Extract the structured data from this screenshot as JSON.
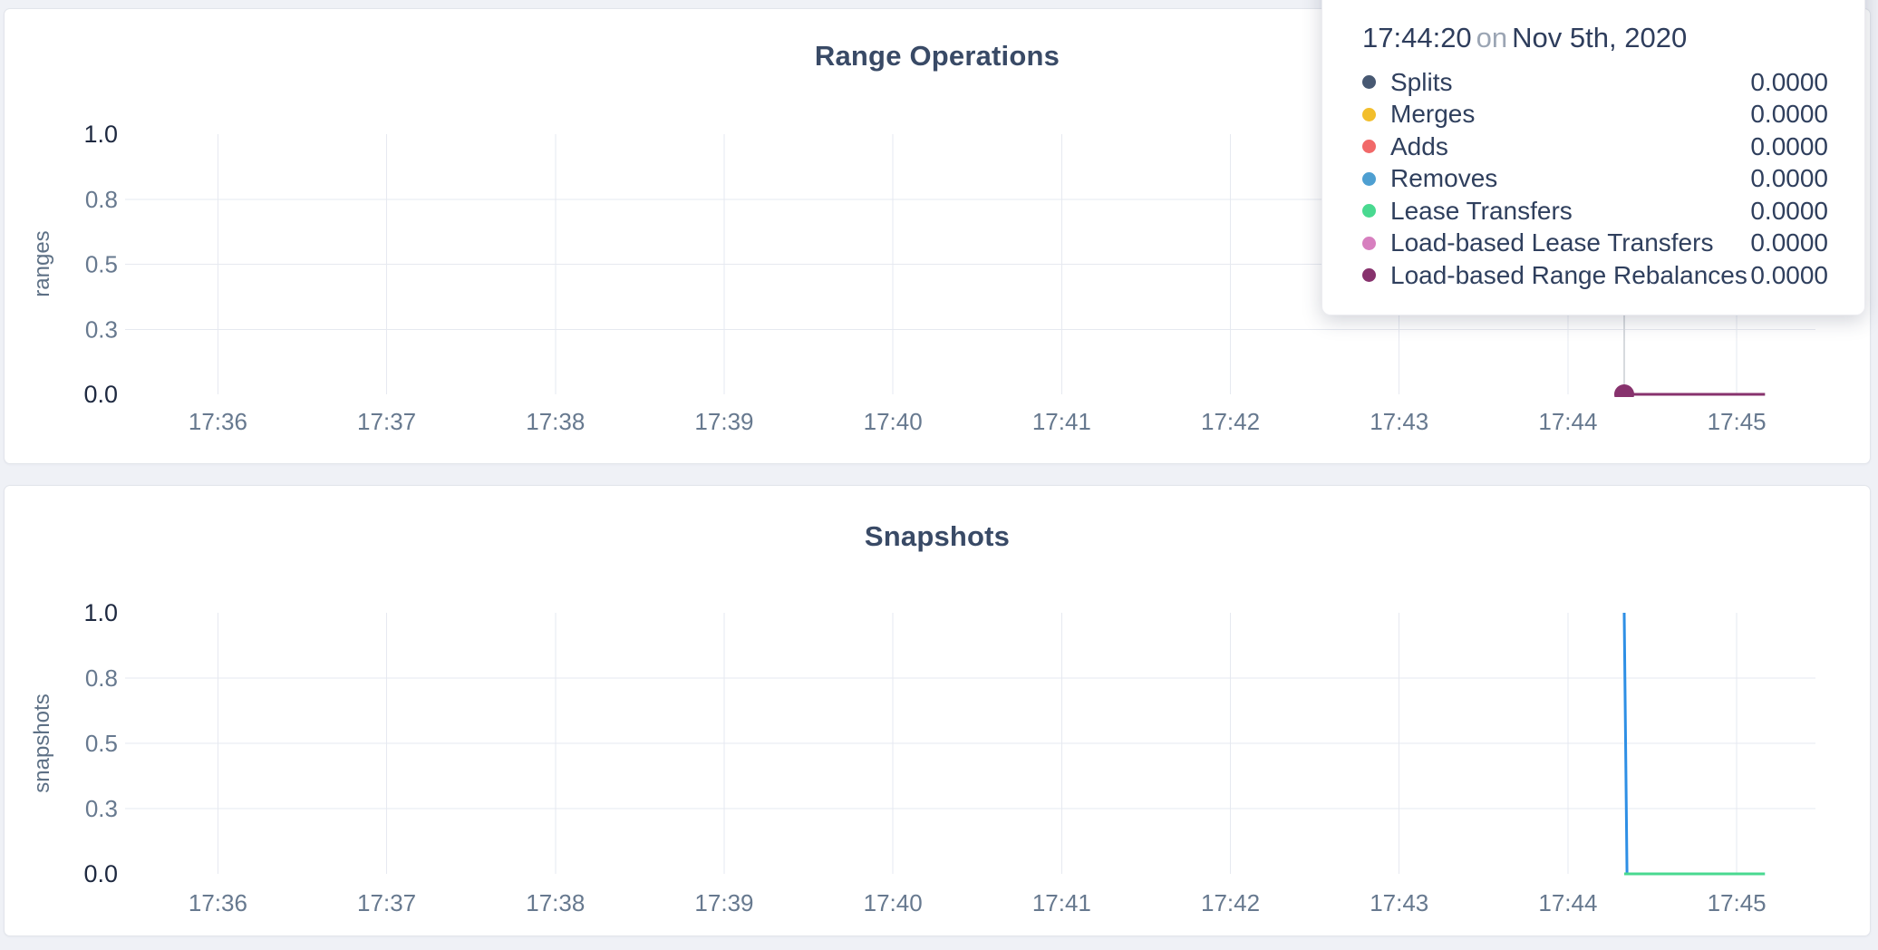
{
  "tooltip": {
    "time": "17:44:20",
    "conjunction": "on",
    "date": "Nov 5th, 2020",
    "rows": [
      {
        "label": "Splits",
        "value": "0.0000",
        "color": "#475872"
      },
      {
        "label": "Merges",
        "value": "0.0000",
        "color": "#F2BE2C"
      },
      {
        "label": "Adds",
        "value": "0.0000",
        "color": "#F16969"
      },
      {
        "label": "Removes",
        "value": "0.0000",
        "color": "#4E9FD1"
      },
      {
        "label": "Lease Transfers",
        "value": "0.0000",
        "color": "#49D990"
      },
      {
        "label": "Load-based Lease Transfers",
        "value": "0.0000",
        "color": "#D77FBF"
      },
      {
        "label": "Load-based Range Rebalances",
        "value": "0.0000",
        "color": "#87326D"
      }
    ]
  },
  "chart_data": [
    {
      "type": "line",
      "title": "Range Operations",
      "ylabel": "ranges",
      "ylim": [
        0,
        1
      ],
      "grid": true,
      "legend_position": "tooltip-overlay",
      "x_domain": [
        "17:35:27",
        "17:45:28"
      ],
      "x_ticks": [
        "17:36",
        "17:37",
        "17:38",
        "17:39",
        "17:40",
        "17:41",
        "17:42",
        "17:43",
        "17:44",
        "17:45"
      ],
      "y_ticks": [
        {
          "label": "0.0",
          "value": 0,
          "emphasis": true
        },
        {
          "label": "0.3",
          "value": 0.25,
          "emphasis": false
        },
        {
          "label": "0.5",
          "value": 0.5,
          "emphasis": false
        },
        {
          "label": "0.8",
          "value": 0.75,
          "emphasis": false
        },
        {
          "label": "1.0",
          "value": 1,
          "emphasis": true
        }
      ],
      "series": [
        {
          "name": "Splits",
          "color": "#475872",
          "points": [
            [
              "17:44:20",
              0
            ],
            [
              "17:45:10",
              0
            ]
          ]
        },
        {
          "name": "Merges",
          "color": "#F2BE2C",
          "points": [
            [
              "17:44:20",
              0
            ],
            [
              "17:45:10",
              0
            ]
          ]
        },
        {
          "name": "Adds",
          "color": "#F16969",
          "points": [
            [
              "17:44:20",
              0
            ],
            [
              "17:45:10",
              0
            ]
          ]
        },
        {
          "name": "Removes",
          "color": "#4E9FD1",
          "points": [
            [
              "17:44:20",
              0
            ],
            [
              "17:45:10",
              0
            ]
          ]
        },
        {
          "name": "Lease Transfers",
          "color": "#49D990",
          "points": [
            [
              "17:44:20",
              0
            ],
            [
              "17:45:10",
              0
            ]
          ]
        },
        {
          "name": "Load-based Lease Transfers",
          "color": "#D77FBF",
          "points": [
            [
              "17:44:20",
              0
            ],
            [
              "17:45:10",
              0
            ]
          ]
        },
        {
          "name": "Load-based Range Rebalances",
          "color": "#87326D",
          "points": [
            [
              "17:44:20",
              0
            ],
            [
              "17:45:10",
              0
            ]
          ]
        }
      ],
      "hover": {
        "time": "17:44:20",
        "crosshair": true,
        "dot_series": "Load-based Range Rebalances",
        "dot_value": 0
      }
    },
    {
      "type": "line",
      "title": "Snapshots",
      "ylabel": "snapshots",
      "ylim": [
        0,
        1
      ],
      "grid": true,
      "x_domain": [
        "17:35:27",
        "17:45:28"
      ],
      "x_ticks": [
        "17:36",
        "17:37",
        "17:38",
        "17:39",
        "17:40",
        "17:41",
        "17:42",
        "17:43",
        "17:44",
        "17:45"
      ],
      "y_ticks": [
        {
          "label": "0.0",
          "value": 0,
          "emphasis": true
        },
        {
          "label": "0.3",
          "value": 0.25,
          "emphasis": false
        },
        {
          "label": "0.5",
          "value": 0.5,
          "emphasis": false
        },
        {
          "label": "0.8",
          "value": 0.75,
          "emphasis": false
        },
        {
          "label": "1.0",
          "value": 1,
          "emphasis": true
        }
      ],
      "series": [
        {
          "name": "series-blue",
          "color": "#2E8FE5",
          "points": [
            [
              "17:44:20",
              1
            ],
            [
              "17:44:21",
              0
            ],
            [
              "17:45:10",
              0
            ]
          ]
        },
        {
          "name": "series-green",
          "color": "#49D990",
          "points": [
            [
              "17:44:20",
              0
            ],
            [
              "17:45:10",
              0
            ]
          ]
        }
      ]
    }
  ]
}
